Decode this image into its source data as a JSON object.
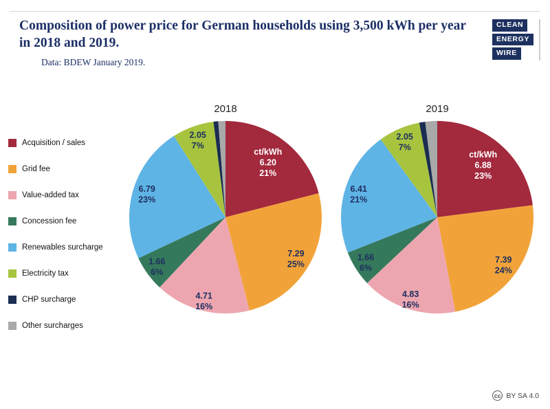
{
  "header": {
    "title": "Composition of power price for German households using 3,500 kWh per year in 2018 and 2019.",
    "source": "Data: BDEW January 2019."
  },
  "logo": {
    "line1": "CLEAN",
    "line2": "ENERGY",
    "line3": "WIRE"
  },
  "footer": {
    "cc": "cc",
    "license": "BY SA 4.0"
  },
  "colors": {
    "title": "#1c2f66",
    "label_dark": "#1c2e5e",
    "label_light": "#ffffff"
  },
  "chart_data": [
    {
      "type": "pie",
      "title": "2018",
      "unit_label": "ct/kWh",
      "slices": [
        {
          "label": "Acquisition / sales",
          "value": "6.20",
          "pct": "21%",
          "pct_num": 21,
          "color": "#a3293d",
          "text_color": "#ffffff"
        },
        {
          "label": "Grid fee",
          "value": "7.29",
          "pct": "25%",
          "pct_num": 25,
          "color": "#f1a33a",
          "text_color": "#1c2e5e"
        },
        {
          "label": "Value-added tax",
          "value": "4.71",
          "pct": "16%",
          "pct_num": 16,
          "color": "#eda6b0",
          "text_color": "#1c2e5e"
        },
        {
          "label": "Concession fee",
          "value": "1.66",
          "pct": "6%",
          "pct_num": 6,
          "color": "#35795c",
          "text_color": "#1c2e5e"
        },
        {
          "label": "Renewables surcharge",
          "value": "6.79",
          "pct": "23%",
          "pct_num": 23,
          "color": "#5fb4e6",
          "text_color": "#1c2e5e"
        },
        {
          "label": "Electricity tax",
          "value": "2.05",
          "pct": "7%",
          "pct_num": 7,
          "color": "#a8c43f",
          "text_color": "#1c2e5e"
        },
        {
          "label": "CHP surcharge",
          "value": "",
          "pct": "",
          "pct_num": 0.8,
          "color": "#1b2d51",
          "text_color": "#ffffff"
        },
        {
          "label": "Other surcharges",
          "value": "",
          "pct": "",
          "pct_num": 1.2,
          "color": "#a9a9a9",
          "text_color": "#1c2e5e"
        }
      ]
    },
    {
      "type": "pie",
      "title": "2019",
      "unit_label": "ct/kWh",
      "slices": [
        {
          "label": "Acquisition / sales",
          "value": "6.88",
          "pct": "23%",
          "pct_num": 23,
          "color": "#a3293d",
          "text_color": "#ffffff"
        },
        {
          "label": "Grid fee",
          "value": "7.39",
          "pct": "24%",
          "pct_num": 24,
          "color": "#f1a33a",
          "text_color": "#1c2e5e"
        },
        {
          "label": "Value-added tax",
          "value": "4.83",
          "pct": "16%",
          "pct_num": 16,
          "color": "#eda6b0",
          "text_color": "#1c2e5e"
        },
        {
          "label": "Concession fee",
          "value": "1.66",
          "pct": "6%",
          "pct_num": 6,
          "color": "#35795c",
          "text_color": "#1c2e5e"
        },
        {
          "label": "Renewables surcharge",
          "value": "6.41",
          "pct": "21%",
          "pct_num": 21,
          "color": "#5fb4e6",
          "text_color": "#1c2e5e"
        },
        {
          "label": "Electricity tax",
          "value": "2.05",
          "pct": "7%",
          "pct_num": 7,
          "color": "#a8c43f",
          "text_color": "#1c2e5e"
        },
        {
          "label": "CHP surcharge",
          "value": "",
          "pct": "",
          "pct_num": 1,
          "color": "#1b2d51",
          "text_color": "#ffffff"
        },
        {
          "label": "Other surcharges",
          "value": "",
          "pct": "",
          "pct_num": 2,
          "color": "#a9a9a9",
          "text_color": "#1c2e5e"
        }
      ]
    }
  ]
}
